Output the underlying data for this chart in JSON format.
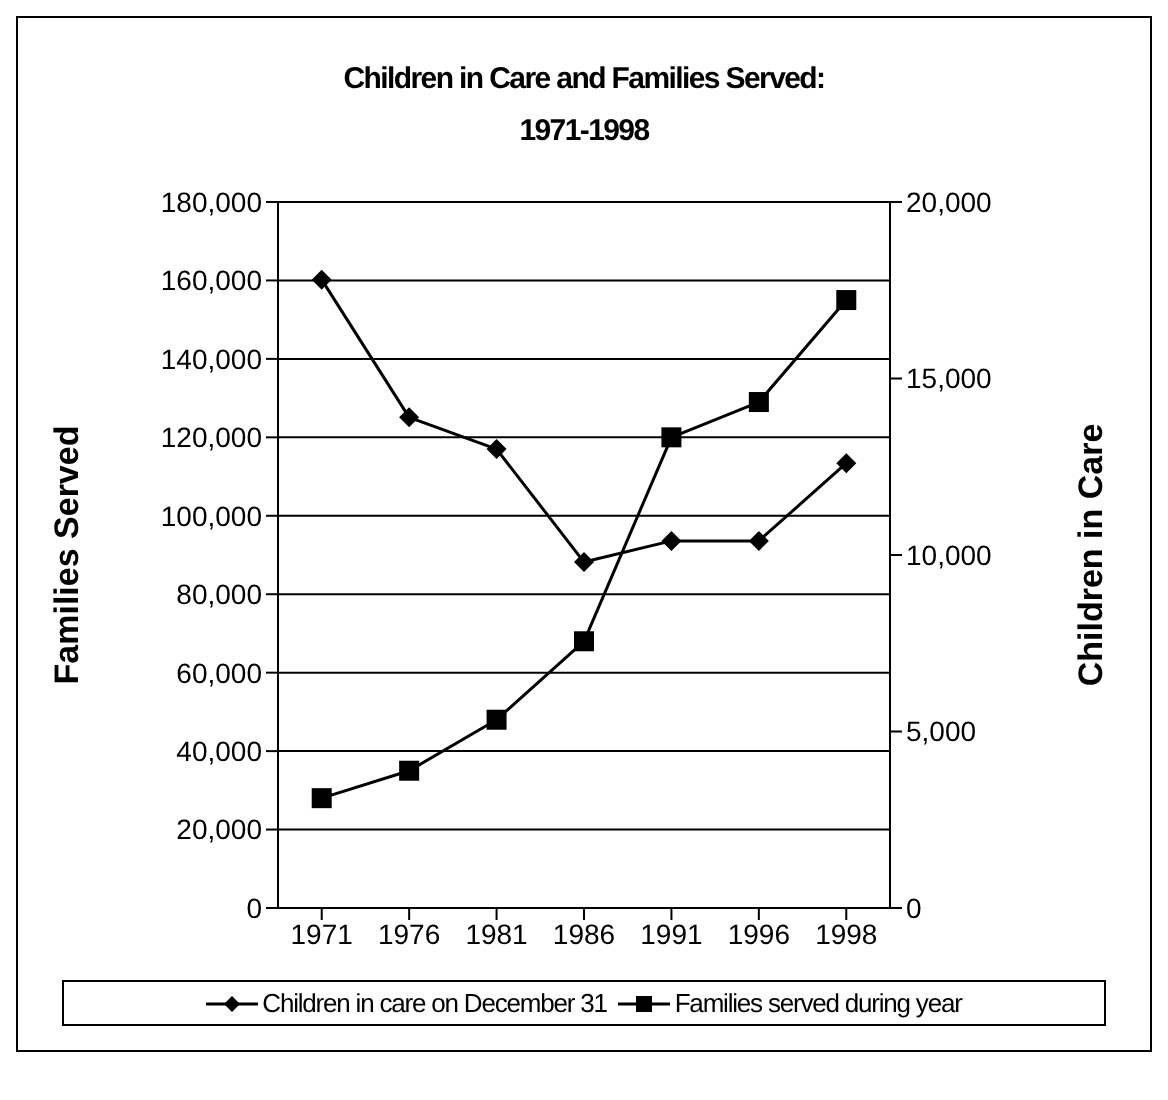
{
  "chart_data": {
    "type": "line",
    "title": "Children in Care and Families Served:\n1971-1998",
    "ylabel": "Families Served",
    "y2label": "Children in Care",
    "categories": [
      "1971",
      "1976",
      "1981",
      "1986",
      "1991",
      "1996",
      "1998"
    ],
    "series": [
      {
        "name": "Families served during year",
        "color": "#000000",
        "marker": "square",
        "values": [
          28000,
          35000,
          48000,
          68000,
          120000,
          129000,
          155000
        ]
      },
      {
        "name": "Children in care on December 31",
        "color": "#000000",
        "marker": "diamond",
        "axis": "y2",
        "values": [
          17800,
          13900,
          13000,
          9800,
          10400,
          10400,
          12600
        ]
      }
    ],
    "ylim": [
      0,
      180000
    ],
    "yticks": [
      {
        "value": 0,
        "label": "0"
      },
      {
        "value": 20000,
        "label": "20,000"
      },
      {
        "value": 40000,
        "label": "40,000"
      },
      {
        "value": 60000,
        "label": "60,000"
      },
      {
        "value": 80000,
        "label": "80,000"
      },
      {
        "value": 100000,
        "label": "100,000"
      },
      {
        "value": 120000,
        "label": "120,000"
      },
      {
        "value": 140000,
        "label": "140,000"
      },
      {
        "value": 160000,
        "label": "160,000"
      },
      {
        "value": 180000,
        "label": "180,000"
      }
    ],
    "y2lim": [
      0,
      20000
    ],
    "y2ticks": [
      {
        "value": 0,
        "label": "0"
      },
      {
        "value": 5000,
        "label": "5,000"
      },
      {
        "value": 10000,
        "label": "10,000"
      },
      {
        "value": 15000,
        "label": "15,000"
      },
      {
        "value": 20000,
        "label": "20,000"
      }
    ],
    "grid": "y",
    "legend": "bottom",
    "line_style": "solid"
  }
}
